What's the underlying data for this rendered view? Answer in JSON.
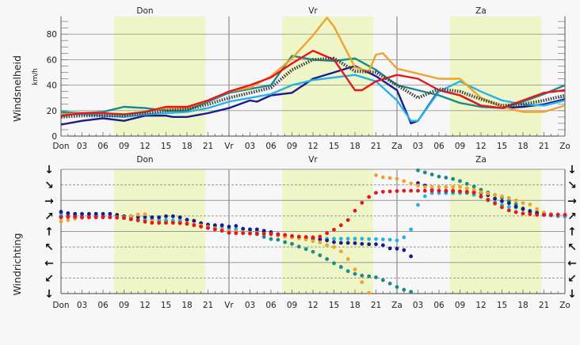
{
  "chart_data": [
    {
      "type": "line",
      "ylabel": "Windsnelheid",
      "yunit": "km/h",
      "ylim": [
        0,
        94
      ],
      "yticks": [
        0,
        20,
        40,
        60,
        80
      ],
      "xlim_hours": [
        0,
        72
      ],
      "xtick_labels": [
        "Don",
        "03",
        "06",
        "09",
        "12",
        "15",
        "18",
        "21",
        "Vr",
        "03",
        "06",
        "09",
        "12",
        "15",
        "18",
        "21",
        "Za",
        "03",
        "06",
        "09",
        "12",
        "15",
        "18",
        "21",
        "Zo"
      ],
      "day_labels": [
        "Don",
        "Vr",
        "Za"
      ],
      "daylight_hours": [
        [
          7.6,
          20.6
        ],
        [
          31.6,
          44.6
        ],
        [
          55.6,
          68.6
        ]
      ],
      "grid": true,
      "series": [
        {
          "color": "#1b1b8f",
          "style": "solid",
          "points": [
            [
              0,
              9
            ],
            [
              3,
              12
            ],
            [
              6,
              14
            ],
            [
              9,
              12
            ],
            [
              12,
              16
            ],
            [
              15,
              16
            ],
            [
              16,
              15
            ],
            [
              18,
              15
            ],
            [
              21,
              18
            ],
            [
              24,
              22
            ],
            [
              27,
              28
            ],
            [
              28,
              27
            ],
            [
              30,
              32
            ],
            [
              33,
              34
            ],
            [
              36,
              45
            ],
            [
              39,
              50
            ],
            [
              42,
              55
            ],
            [
              45,
              47
            ],
            [
              48,
              36
            ],
            [
              50,
              10
            ],
            [
              51,
              12
            ],
            [
              54,
              36
            ],
            [
              57,
              32
            ],
            [
              60,
              24
            ],
            [
              63,
              22
            ],
            [
              66,
              23
            ],
            [
              69,
              25
            ],
            [
              72,
              29
            ]
          ]
        },
        {
          "color": "#26b2e8",
          "style": "solid",
          "points": [
            [
              0,
              18
            ],
            [
              3,
              17
            ],
            [
              6,
              16
            ],
            [
              9,
              15
            ],
            [
              12,
              17
            ],
            [
              15,
              18
            ],
            [
              18,
              19
            ],
            [
              21,
              22
            ],
            [
              24,
              27
            ],
            [
              27,
              30
            ],
            [
              30,
              33
            ],
            [
              33,
              40
            ],
            [
              36,
              44
            ],
            [
              39,
              46
            ],
            [
              42,
              48
            ],
            [
              45,
              43
            ],
            [
              48,
              28
            ],
            [
              50,
              12
            ],
            [
              51,
              12
            ],
            [
              54,
              35
            ],
            [
              57,
              43
            ],
            [
              60,
              35
            ],
            [
              63,
              28
            ],
            [
              66,
              25
            ],
            [
              69,
              24
            ],
            [
              72,
              28
            ]
          ]
        },
        {
          "color": "#1a8a8a",
          "style": "solid",
          "points": [
            [
              0,
              19
            ],
            [
              3,
              18
            ],
            [
              6,
              19
            ],
            [
              9,
              23
            ],
            [
              12,
              22
            ],
            [
              15,
              20
            ],
            [
              18,
              20
            ],
            [
              21,
              27
            ],
            [
              24,
              34
            ],
            [
              27,
              37
            ],
            [
              30,
              40
            ],
            [
              33,
              63
            ],
            [
              36,
              60
            ],
            [
              39,
              59
            ],
            [
              42,
              61
            ],
            [
              45,
              52
            ],
            [
              48,
              40
            ],
            [
              51,
              36
            ],
            [
              54,
              32
            ],
            [
              57,
              26
            ],
            [
              60,
              23
            ],
            [
              63,
              22
            ],
            [
              66,
              27
            ],
            [
              69,
              33
            ],
            [
              72,
              40
            ]
          ]
        },
        {
          "color": "#f0a22e",
          "style": "solid",
          "points": [
            [
              0,
              17
            ],
            [
              3,
              18
            ],
            [
              6,
              18
            ],
            [
              9,
              17
            ],
            [
              12,
              19
            ],
            [
              15,
              22
            ],
            [
              18,
              22
            ],
            [
              21,
              28
            ],
            [
              24,
              35
            ],
            [
              27,
              38
            ],
            [
              30,
              47
            ],
            [
              33,
              61
            ],
            [
              36,
              79
            ],
            [
              38,
              93
            ],
            [
              39,
              86
            ],
            [
              42,
              54
            ],
            [
              44,
              51
            ],
            [
              45,
              64
            ],
            [
              46,
              65
            ],
            [
              48,
              53
            ],
            [
              51,
              49
            ],
            [
              54,
              45
            ],
            [
              57,
              45
            ],
            [
              60,
              30
            ],
            [
              63,
              23
            ],
            [
              66,
              19
            ],
            [
              69,
              19
            ],
            [
              72,
              24
            ]
          ]
        },
        {
          "color": "#e8161c",
          "style": "solid",
          "points": [
            [
              0,
              16
            ],
            [
              3,
              18
            ],
            [
              6,
              18
            ],
            [
              9,
              17
            ],
            [
              12,
              19
            ],
            [
              15,
              23
            ],
            [
              18,
              23
            ],
            [
              21,
              28
            ],
            [
              24,
              35
            ],
            [
              27,
              40
            ],
            [
              30,
              46
            ],
            [
              33,
              57
            ],
            [
              36,
              67
            ],
            [
              39,
              60
            ],
            [
              42,
              36
            ],
            [
              43,
              36
            ],
            [
              45,
              43
            ],
            [
              48,
              48
            ],
            [
              51,
              45
            ],
            [
              54,
              36
            ],
            [
              57,
              32
            ],
            [
              60,
              24
            ],
            [
              63,
              22
            ],
            [
              66,
              28
            ],
            [
              69,
              34
            ],
            [
              72,
              36
            ]
          ]
        },
        {
          "color": "#444444",
          "style": "dotted",
          "points": [
            [
              0,
              15
            ],
            [
              3,
              16
            ],
            [
              6,
              16
            ],
            [
              9,
              16
            ],
            [
              12,
              18
            ],
            [
              15,
              20
            ],
            [
              18,
              21
            ],
            [
              21,
              25
            ],
            [
              24,
              30
            ],
            [
              27,
              34
            ],
            [
              30,
              38
            ],
            [
              33,
              52
            ],
            [
              36,
              60
            ],
            [
              39,
              61
            ],
            [
              42,
              51
            ],
            [
              45,
              50
            ],
            [
              48,
              40
            ],
            [
              51,
              30
            ],
            [
              54,
              37
            ],
            [
              57,
              35
            ],
            [
              60,
              29
            ],
            [
              63,
              24
            ],
            [
              66,
              25
            ],
            [
              69,
              28
            ],
            [
              72,
              32
            ]
          ]
        }
      ]
    },
    {
      "type": "scatter",
      "ylabel": "Windrichting",
      "ylim_degrees": [
        0,
        360
      ],
      "ytick_arrows": [
        "↓",
        "↘",
        "→",
        "↗",
        "↑",
        "↖",
        "←",
        "↙",
        "↓"
      ],
      "xlim_hours": [
        0,
        72
      ],
      "xtick_labels": [
        "Don",
        "03",
        "06",
        "09",
        "12",
        "15",
        "18",
        "21",
        "Vr",
        "03",
        "06",
        "09",
        "12",
        "15",
        "18",
        "21",
        "Za",
        "03",
        "06",
        "09",
        "12",
        "15",
        "18",
        "21",
        "Zo"
      ],
      "day_labels": [
        "Don",
        "Vr",
        "Za"
      ],
      "daylight_hours": [
        [
          7.6,
          20.6
        ],
        [
          31.6,
          44.6
        ],
        [
          55.6,
          68.6
        ]
      ],
      "grid": true,
      "x_step_hours": 1,
      "series": [
        {
          "color": "#1a8a8a",
          "values": [
            224,
            224,
            223,
            223,
            222,
            222,
            222,
            221,
            220,
            219,
            216,
            214,
            213,
            212,
            211,
            210,
            209,
            207,
            204,
            200,
            195,
            190,
            187,
            185,
            182,
            180,
            178,
            176,
            172,
            164,
            158,
            156,
            149,
            144,
            136,
            129,
            121,
            111,
            100,
            88,
            77,
            65,
            57,
            52,
            50,
            47,
            39,
            29,
            19,
            11,
            5,
            357,
            351,
            345,
            339,
            336,
            332,
            326,
            318,
            310,
            301,
            293,
            286,
            278,
            269,
            259,
            247,
            240,
            236,
            232,
            230,
            229,
            228
          ]
        },
        {
          "color": "#26b2e8",
          "values": [
            232,
            230,
            226,
            226,
            225,
            225,
            225,
            225,
            224,
            224,
            219,
            215,
            214,
            214,
            213,
            213,
            212,
            212,
            213,
            210,
            204,
            198,
            194,
            191,
            188,
            186,
            184,
            182,
            180,
            177,
            175,
            172,
            165,
            163,
            161,
            160,
            159,
            159,
            159,
            159,
            159,
            159,
            159,
            159,
            158,
            158,
            157,
            156,
            154,
            163,
            186,
            257,
            282,
            291,
            291,
            291,
            291,
            291,
            291,
            286,
            280,
            270,
            264,
            257,
            251,
            249,
            244,
            236,
            232,
            228,
            226,
            224,
            223
          ]
        },
        {
          "color": "#1b1b8f",
          "values": [
            237,
            233,
            231,
            231,
            231,
            231,
            231,
            231,
            228,
            224,
            223,
            222,
            222,
            221,
            221,
            224,
            224,
            221,
            214,
            211,
            204,
            200,
            198,
            198,
            194,
            196,
            188,
            186,
            186,
            182,
            178,
            172,
            168,
            165,
            163,
            162,
            160,
            157,
            154,
            149,
            147,
            147,
            146,
            144,
            143,
            143,
            140,
            131,
            130,
            126,
            108,
            320,
            313,
            300,
            298,
            297,
            297,
            296,
            295,
            294,
            292,
            285,
            275,
            268,
            262,
            252,
            245,
            238,
            233,
            230,
            229,
            228,
            228
          ]
        },
        {
          "color": "#f0a22e",
          "values": [
            209,
            213,
            217,
            219,
            221,
            221,
            221,
            221,
            221,
            221,
            225,
            229,
            230,
            210,
            206,
            205,
            205,
            205,
            204,
            201,
            197,
            193,
            189,
            185,
            181,
            179,
            178,
            176,
            175,
            173,
            171,
            168,
            165,
            163,
            160,
            157,
            152,
            148,
            140,
            135,
            122,
            100,
            70,
            33,
            2,
            343,
            337,
            335,
            333,
            326,
            319,
            313,
            309,
            309,
            309,
            309,
            309,
            309,
            305,
            300,
            294,
            290,
            286,
            282,
            277,
            270,
            262,
            258,
            245,
            235,
            230,
            228,
            228
          ]
        },
        {
          "color": "#e8161c",
          "values": [
            221,
            222,
            222,
            221,
            221,
            221,
            221,
            221,
            220,
            219,
            215,
            212,
            208,
            205,
            205,
            205,
            205,
            204,
            202,
            198,
            194,
            190,
            186,
            182,
            176,
            175,
            175,
            174,
            174,
            173,
            173,
            171,
            170,
            167,
            165,
            164,
            163,
            165,
            175,
            185,
            198,
            213,
            240,
            263,
            280,
            292,
            295,
            296,
            297,
            298,
            298,
            298,
            298,
            298,
            298,
            298,
            298,
            296,
            294,
            292,
            282,
            272,
            261,
            250,
            241,
            236,
            232,
            230,
            228,
            228,
            228,
            228,
            228
          ]
        }
      ]
    }
  ]
}
